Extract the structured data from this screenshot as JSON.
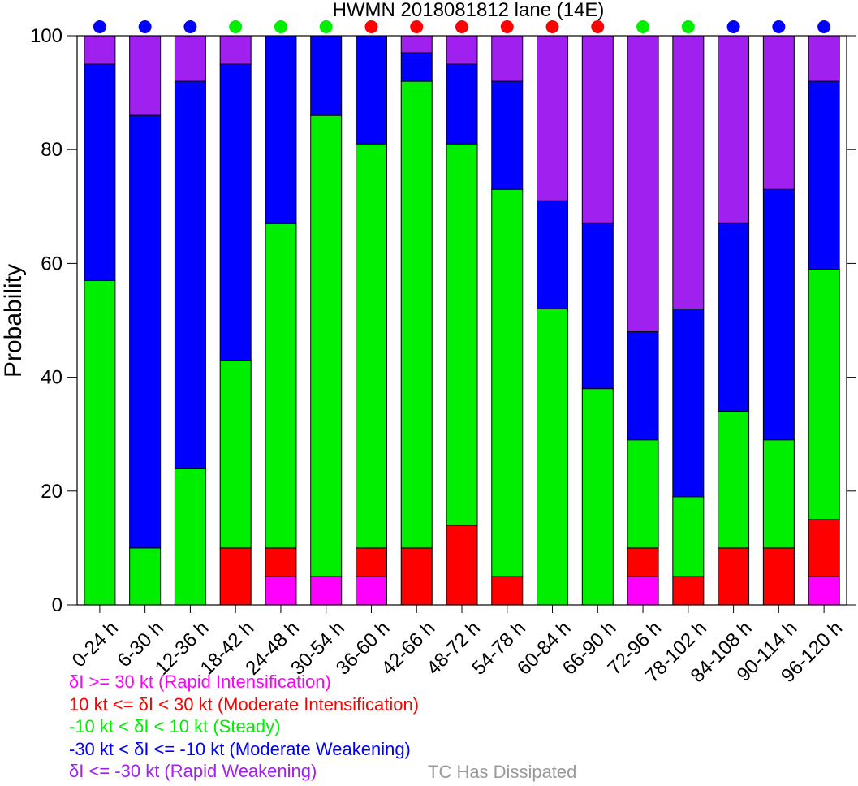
{
  "chart_data": {
    "type": "bar",
    "stacked": true,
    "title": "HWMN 2018081812 lane (14E)",
    "ylabel": "Probability",
    "xlabel": "",
    "ylim": [
      0,
      100
    ],
    "yticks": [
      "0",
      "20",
      "40",
      "60",
      "80",
      "100"
    ],
    "grid": false,
    "legend_placement": "bottom-left",
    "categories": [
      "0-24 h",
      "6-30 h",
      "12-36 h",
      "18-42 h",
      "24-48 h",
      "30-54 h",
      "36-60 h",
      "42-66 h",
      "48-72 h",
      "54-78 h",
      "60-84 h",
      "66-90 h",
      "72-96 h",
      "78-102 h",
      "84-108 h",
      "90-114 h",
      "96-120 h"
    ],
    "series": [
      {
        "name": "δI >= 30 kt (Rapid Intensification)",
        "color": "#ff00ff",
        "values": [
          0,
          0,
          0,
          0,
          5,
          5,
          5,
          0,
          0,
          0,
          0,
          0,
          5,
          0,
          0,
          0,
          5
        ]
      },
      {
        "name": "10 kt <= δI < 30 kt (Moderate Intensification)",
        "color": "#ff0000",
        "values": [
          0,
          0,
          0,
          10,
          5,
          0,
          5,
          10,
          14,
          5,
          0,
          0,
          5,
          5,
          10,
          10,
          10
        ]
      },
      {
        "name": "-10 kt < δI < 10 kt (Steady)",
        "color": "#00ee00",
        "values": [
          57,
          10,
          24,
          33,
          57,
          81,
          71,
          82,
          67,
          68,
          52,
          38,
          19,
          14,
          24,
          19,
          44
        ]
      },
      {
        "name": "-30 kt < δI <= -10 kt (Moderate Weakening)",
        "color": "#0000ff",
        "values": [
          38,
          76,
          68,
          52,
          33,
          14,
          19,
          5,
          14,
          19,
          19,
          29,
          19,
          33,
          33,
          44,
          33
        ]
      },
      {
        "name": "δI <= -30 kt (Rapid Weakening)",
        "color": "#a020f0",
        "values": [
          5,
          14,
          8,
          5,
          0,
          0,
          0,
          3,
          5,
          8,
          29,
          33,
          52,
          48,
          33,
          27,
          8
        ]
      }
    ],
    "indicator_dots": [
      "#0000ff",
      "#0000ff",
      "#0000ff",
      "#00ee00",
      "#00ee00",
      "#00ee00",
      "#ff0000",
      "#ff0000",
      "#ff0000",
      "#ff0000",
      "#ff0000",
      "#ff0000",
      "#00ee00",
      "#00ee00",
      "#0000ff",
      "#0000ff",
      "#0000ff"
    ],
    "dissipated_label": "TC Has Dissipated",
    "dissipated_color": "#999999"
  }
}
